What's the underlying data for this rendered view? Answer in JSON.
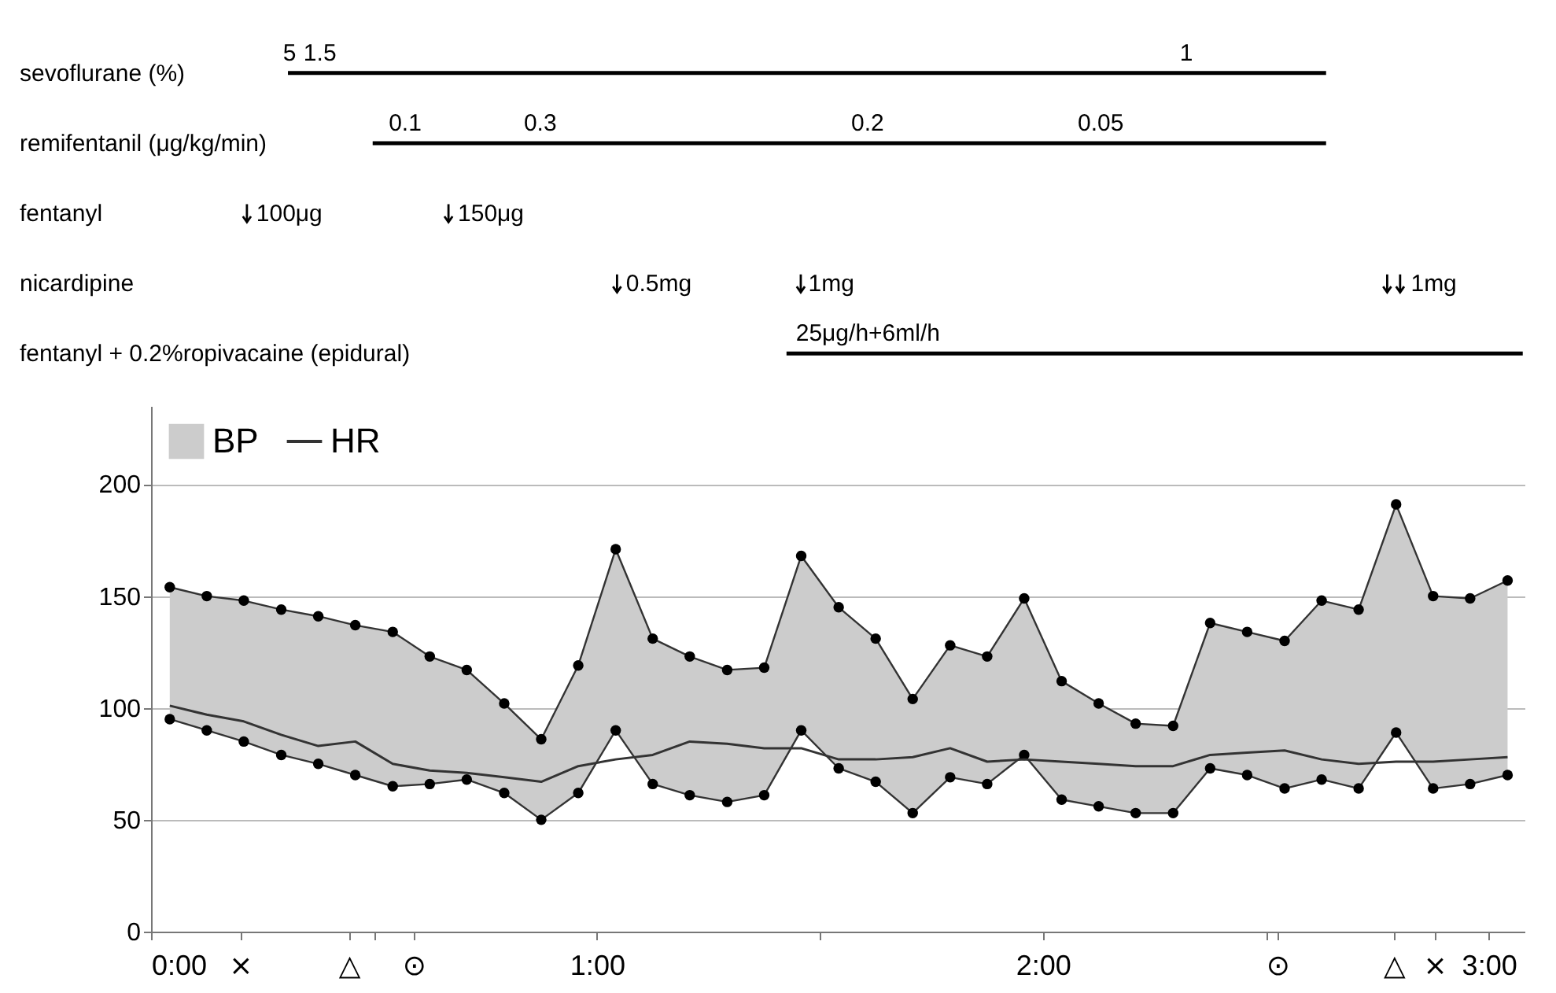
{
  "chart_data": [
    {
      "type": "bar",
      "orientation": "horizontal",
      "categories": [
        "sevoflurane (%)",
        "remifentanil (μg/kg/min)",
        "fentanyl",
        "nicardipine",
        "fentanyl + 0.2%ropivacaine (epidural)"
      ],
      "xlim": [
        0,
        3.08
      ],
      "tick_labels": "y",
      "base": [
        0.307,
        0.497,
        null,
        null,
        1.425
      ],
      "values": [
        2.328,
        2.138,
        null,
        null,
        1.651
      ],
      "color": "#000000",
      "series": [
        {
          "type": "scatter",
          "color": "#000000",
          "x": [
            "fentanyl",
            "fentanyl",
            "nicardipine",
            "nicardipine",
            "nicardipine",
            "nicardipine"
          ],
          "values": [
            0.215,
            0.667,
            1.045,
            1.457,
            2.772,
            2.801
          ]
        }
      ],
      "annotations": [
        {
          "text": "5",
          "x": 0.296,
          "y": "sevoflurane (%)"
        },
        {
          "text": "1.5",
          "x": 0.342,
          "y": "sevoflurane (%)"
        },
        {
          "text": "1",
          "x": 2.307,
          "y": "sevoflurane (%)"
        },
        {
          "text": "0.1",
          "x": 0.533,
          "y": "remifentanil (μg/kg/min)"
        },
        {
          "text": "0.3",
          "x": 0.836,
          "y": "remifentanil (μg/kg/min)"
        },
        {
          "text": "0.2",
          "x": 1.57,
          "y": "remifentanil (μg/kg/min)"
        },
        {
          "text": "0.05",
          "x": 2.078,
          "y": "remifentanil (μg/kg/min)"
        },
        {
          "text": "100μg",
          "x": 0.236,
          "y": "fentanyl"
        },
        {
          "text": "150μg",
          "x": 0.688,
          "y": "fentanyl"
        },
        {
          "text": "0.5mg",
          "x": 1.065,
          "y": "nicardipine"
        },
        {
          "text": "1mg",
          "x": 1.474,
          "y": "nicardipine"
        },
        {
          "text": "1mg",
          "x": 2.825,
          "y": "nicardipine"
        },
        {
          "text": "25μg/h+6ml/h",
          "x": 1.446,
          "y": "fentanyl + 0.2%ropivacaine (epidural)"
        }
      ]
    },
    {
      "type": "line",
      "x": [
        0.042,
        0.125,
        0.208,
        0.292,
        0.375,
        0.458,
        0.542,
        0.625,
        0.708,
        0.792,
        0.875,
        0.958,
        1.042,
        1.125,
        1.208,
        1.292,
        1.375,
        1.458,
        1.542,
        1.625,
        1.708,
        1.792,
        1.875,
        1.958,
        2.042,
        2.125,
        2.208,
        2.292,
        2.375,
        2.458,
        2.542,
        2.625,
        2.708,
        2.792,
        2.875,
        2.958,
        3.042
      ],
      "xlim": [
        0,
        3.08
      ],
      "xticks": [
        {
          "value": 0,
          "label": "0:00"
        },
        {
          "value": 0.2,
          "label": "×"
        },
        {
          "value": 0.444,
          "label": "△"
        },
        {
          "value": 0.5,
          "label": null
        },
        {
          "value": 0.589,
          "label": "⊙"
        },
        {
          "value": 1,
          "label": "1:00"
        },
        {
          "value": 1.5,
          "label": null
        },
        {
          "value": 2,
          "label": "2:00"
        },
        {
          "value": 2.5,
          "label": null
        },
        {
          "value": 2.526,
          "label": "⊙"
        },
        {
          "value": 2.787,
          "label": "△"
        },
        {
          "value": 2.878,
          "label": "×"
        },
        {
          "value": 3,
          "label": "3:00"
        }
      ],
      "ylim": [
        0,
        235
      ],
      "yticks": [
        0,
        50,
        100,
        150,
        200
      ],
      "grid": "y",
      "legend": "top left",
      "series": [
        {
          "name": "BP",
          "type": "area",
          "color": "#cccccc",
          "marker": "circle",
          "values": [
            154,
            150,
            148,
            144,
            141,
            137,
            134,
            123,
            117,
            102,
            86,
            119,
            171,
            131,
            123,
            117,
            118,
            168,
            145,
            131,
            104,
            128,
            123,
            149,
            112,
            102,
            93,
            92,
            138,
            134,
            130,
            148,
            144,
            191,
            150,
            149,
            157
          ]
        },
        {
          "type": "line",
          "color": "#333333",
          "marker": "circle",
          "values": [
            95,
            90,
            85,
            79,
            75,
            70,
            65,
            66,
            68,
            62,
            50,
            62,
            90,
            66,
            61,
            58,
            61,
            90,
            73,
            67,
            53,
            69,
            66,
            79,
            59,
            56,
            53,
            53,
            73,
            70,
            64,
            68,
            64,
            89,
            64,
            66,
            70
          ]
        },
        {
          "name": "HR",
          "type": "line",
          "color": "#333333",
          "marker": "none",
          "values": [
            101,
            97,
            94,
            88,
            83,
            85,
            75,
            72,
            71,
            69,
            67,
            74,
            77,
            79,
            85,
            84,
            82,
            82,
            77,
            77,
            78,
            82,
            76,
            77,
            76,
            75,
            74,
            74,
            79,
            80,
            81,
            77,
            75,
            76,
            76,
            77,
            78
          ]
        }
      ]
    }
  ]
}
